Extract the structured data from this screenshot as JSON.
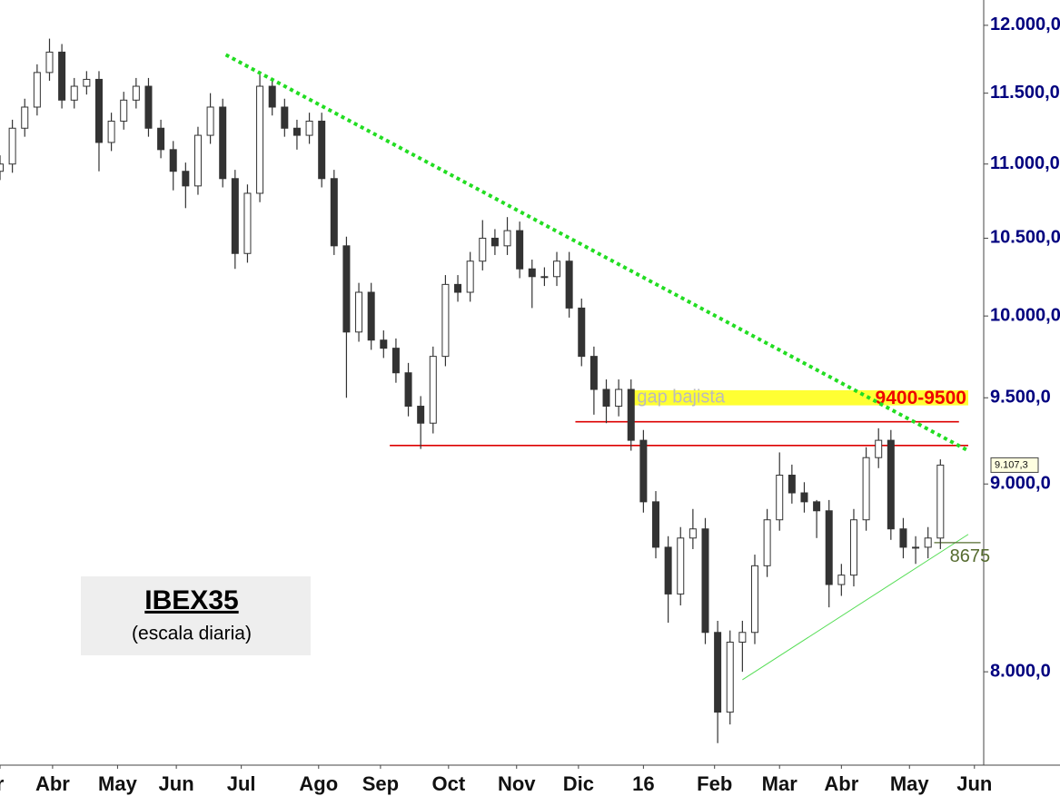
{
  "chart_data": {
    "type": "candlestick",
    "title": "IBEX35",
    "subtitle": "(escala diaria)",
    "x": [
      0,
      4,
      8,
      12,
      16,
      20,
      24,
      28,
      32,
      36,
      40,
      44,
      48,
      52,
      56,
      60,
      64,
      68,
      72,
      76,
      80,
      84,
      88,
      92,
      96,
      100,
      104,
      108,
      112,
      116,
      120,
      124,
      128,
      132,
      136,
      140,
      144,
      148,
      152,
      156,
      160,
      164,
      168,
      172,
      176,
      180,
      184,
      188,
      192,
      196,
      200,
      204,
      208,
      212,
      216,
      220,
      224,
      228,
      232,
      236,
      240,
      244,
      248,
      252,
      256,
      260,
      264,
      268,
      272,
      276,
      280,
      284,
      288,
      292,
      296,
      300,
      304
    ],
    "open": [
      10950,
      11000,
      11250,
      11400,
      11650,
      11800,
      11450,
      11550,
      11600,
      11150,
      11300,
      11450,
      11550,
      11250,
      11100,
      10950,
      10850,
      11200,
      11400,
      10900,
      10400,
      10800,
      11550,
      11400,
      11250,
      11200,
      11300,
      10900,
      10450,
      9900,
      10150,
      9850,
      9800,
      9650,
      9450,
      9350,
      9750,
      10200,
      10150,
      10350,
      10500,
      10450,
      10550,
      10300,
      10250,
      10250,
      10350,
      10050,
      9750,
      9550,
      9450,
      9550,
      9250,
      8900,
      8650,
      8400,
      8700,
      8750,
      8200,
      7800,
      8150,
      8200,
      8550,
      8800,
      9050,
      8950,
      8900,
      8850,
      8450,
      8500,
      8800,
      9150,
      9250,
      8750,
      8650,
      8650,
      8700
    ],
    "high": [
      11060,
      11310,
      11460,
      11710,
      11900,
      11860,
      11610,
      11660,
      11660,
      11360,
      11510,
      11610,
      11610,
      11310,
      11160,
      11010,
      11260,
      11500,
      11460,
      10960,
      10860,
      11650,
      11610,
      11460,
      11310,
      11360,
      11360,
      10960,
      10510,
      10210,
      10210,
      9910,
      9860,
      9710,
      9510,
      9810,
      10260,
      10260,
      10410,
      10620,
      10560,
      10640,
      10610,
      10360,
      10310,
      10410,
      10410,
      10110,
      9810,
      9610,
      9610,
      9610,
      9310,
      8960,
      8710,
      8760,
      8860,
      8810,
      8260,
      8210,
      8260,
      8610,
      8860,
      9180,
      9110,
      9010,
      8910,
      8910,
      8560,
      8860,
      9210,
      9320,
      9310,
      8810,
      8710,
      8760,
      9140
    ],
    "low": [
      10890,
      10940,
      11190,
      11340,
      11590,
      11390,
      11390,
      11490,
      10950,
      11090,
      11240,
      11390,
      11190,
      11040,
      10820,
      10700,
      10790,
      11140,
      10840,
      10300,
      10340,
      10740,
      11340,
      11190,
      11100,
      11140,
      10840,
      10390,
      9500,
      9840,
      9790,
      9740,
      9590,
      9390,
      9200,
      9290,
      9690,
      10090,
      10090,
      10290,
      10390,
      10390,
      10240,
      10050,
      10190,
      10190,
      9990,
      9690,
      9400,
      9350,
      9390,
      9190,
      8840,
      8590,
      8250,
      8340,
      8640,
      8140,
      7650,
      7740,
      8000,
      8140,
      8490,
      8740,
      8890,
      8840,
      8700,
      8330,
      8390,
      8440,
      8740,
      9090,
      8690,
      8590,
      8560,
      8590,
      8640
    ],
    "close": [
      11000,
      11250,
      11400,
      11650,
      11800,
      11450,
      11550,
      11600,
      11150,
      11300,
      11450,
      11550,
      11250,
      11100,
      10950,
      10850,
      11200,
      11400,
      10900,
      10400,
      10800,
      11550,
      11400,
      11250,
      11200,
      11300,
      10900,
      10450,
      9900,
      10150,
      9850,
      9800,
      9650,
      9450,
      9350,
      9750,
      10200,
      10150,
      10350,
      10500,
      10450,
      10550,
      10300,
      10250,
      10250,
      10350,
      10050,
      9750,
      9550,
      9450,
      9550,
      9250,
      8900,
      8650,
      8400,
      8700,
      8750,
      8200,
      7800,
      8150,
      8200,
      8550,
      8800,
      9050,
      8950,
      8900,
      8850,
      8450,
      8500,
      8800,
      9150,
      9250,
      8750,
      8650,
      8650,
      8700,
      9107.3
    ],
    "up_color": "#ffffff",
    "down_color": "#333333",
    "wick_color": "#333333",
    "xlim": [
      0,
      318
    ],
    "xticks": [
      {
        "value": 0,
        "label": "r"
      },
      {
        "value": 17,
        "label": "Abr"
      },
      {
        "value": 38,
        "label": "May"
      },
      {
        "value": 57,
        "label": "Jun"
      },
      {
        "value": 78,
        "label": "Jul"
      },
      {
        "value": 103,
        "label": "Ago"
      },
      {
        "value": 123,
        "label": "Sep"
      },
      {
        "value": 145,
        "label": "Oct"
      },
      {
        "value": 167,
        "label": "Nov"
      },
      {
        "value": 187,
        "label": "Dic"
      },
      {
        "value": 208,
        "label": "16"
      },
      {
        "value": 231,
        "label": "Feb"
      },
      {
        "value": 252,
        "label": "Mar"
      },
      {
        "value": 272,
        "label": "Abr"
      },
      {
        "value": 294,
        "label": "May"
      },
      {
        "value": 315,
        "label": "Jun"
      }
    ],
    "ylim": [
      7545,
      12192
    ],
    "log_scale": true,
    "yticks": [
      {
        "value": 12000,
        "label": "12.000,0"
      },
      {
        "value": 11500,
        "label": "11.500,0"
      },
      {
        "value": 11000,
        "label": "11.000,0"
      },
      {
        "value": 10500,
        "label": "10.500,0"
      },
      {
        "value": 10000,
        "label": "10.000,0"
      },
      {
        "value": 9500,
        "label": "9.500,0"
      },
      {
        "value": 9000,
        "label": "9.000,0"
      },
      {
        "value": 8000,
        "label": "8.000,0"
      }
    ],
    "last_price": {
      "value": 9107.3,
      "label": "9.107,3"
    },
    "trendline": {
      "x": [
        73,
        313
      ],
      "y": [
        11780,
        9190
      ],
      "color": "#22dd22"
    },
    "support_lines": [
      {
        "x": [
          126,
          313
        ],
        "y": [
          9220,
          9220
        ],
        "color": "#dd0000"
      },
      {
        "x": [
          186,
          310
        ],
        "y": [
          9358,
          9358
        ],
        "color": "#dd0000"
      }
    ],
    "gap": {
      "x": [
        203,
        313
      ],
      "y": [
        9455,
        9545
      ],
      "color": "#ffff33",
      "label": "gap bajista",
      "range_label": "9400-9500"
    },
    "uptrend": {
      "x": [
        240,
        313
      ],
      "y": [
        7960,
        8720
      ],
      "color": "#55dd55"
    },
    "level": {
      "x": [
        302,
        317
      ],
      "value": 8675,
      "color": "#556b2f"
    }
  }
}
